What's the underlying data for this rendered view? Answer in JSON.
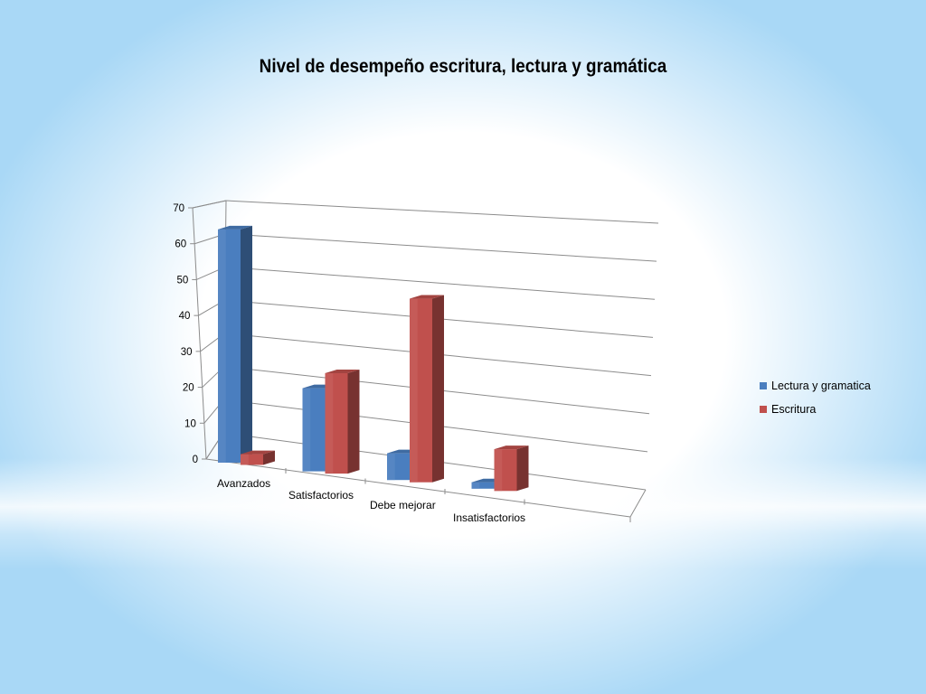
{
  "chart_data": {
    "type": "bar",
    "title": "Nivel de desempeño escritura, lectura y gramática",
    "categories": [
      "Avanzados",
      "Satisfactorios",
      "Debe mejorar",
      "Insatisfactorios"
    ],
    "series": [
      {
        "name": "Lectura y gramatica",
        "values": [
          65,
          24,
          8,
          2
        ],
        "color": "#4a7ebf"
      },
      {
        "name": "Escritura",
        "values": [
          3,
          29,
          55,
          13
        ],
        "color": "#c0504d"
      }
    ],
    "ylim": [
      0,
      70
    ],
    "yticks": [
      0,
      10,
      20,
      30,
      40,
      50,
      60,
      70
    ],
    "grid": true,
    "legend_position": "right",
    "style": "3d-clustered-column"
  }
}
